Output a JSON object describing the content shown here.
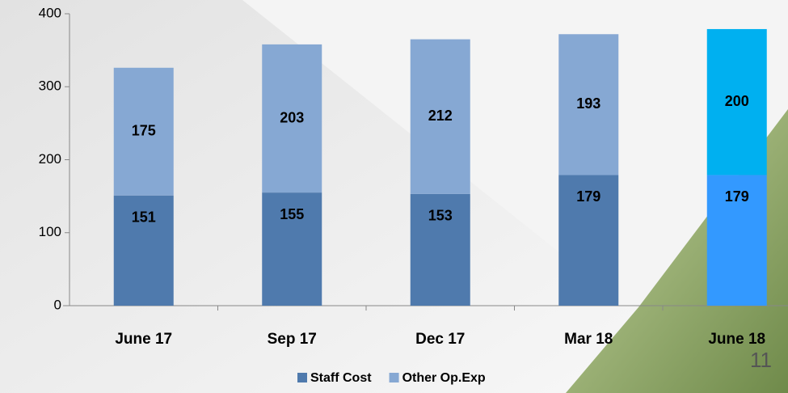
{
  "chart_data": {
    "type": "stacked-bar",
    "categories": [
      "June 17",
      "Sep 17",
      "Dec 17",
      "Mar 18",
      "June 18"
    ],
    "series": [
      {
        "name": "Staff Cost",
        "color": "#4f7aad",
        "colors": [
          "#4f7aad",
          "#4f7aad",
          "#4f7aad",
          "#4f7aad",
          "#3399ff"
        ],
        "values": [
          151,
          155,
          153,
          179,
          179
        ]
      },
      {
        "name": "Other Op.Exp",
        "color": "#86a8d3",
        "colors": [
          "#86a8d3",
          "#86a8d3",
          "#86a8d3",
          "#86a8d3",
          "#00b0f0"
        ],
        "values": [
          175,
          203,
          212,
          193,
          200
        ]
      }
    ],
    "ylim": [
      0,
      400
    ],
    "yticks": [
      0,
      100,
      200,
      300,
      400
    ],
    "legend": "bottom"
  },
  "page_number": "11"
}
